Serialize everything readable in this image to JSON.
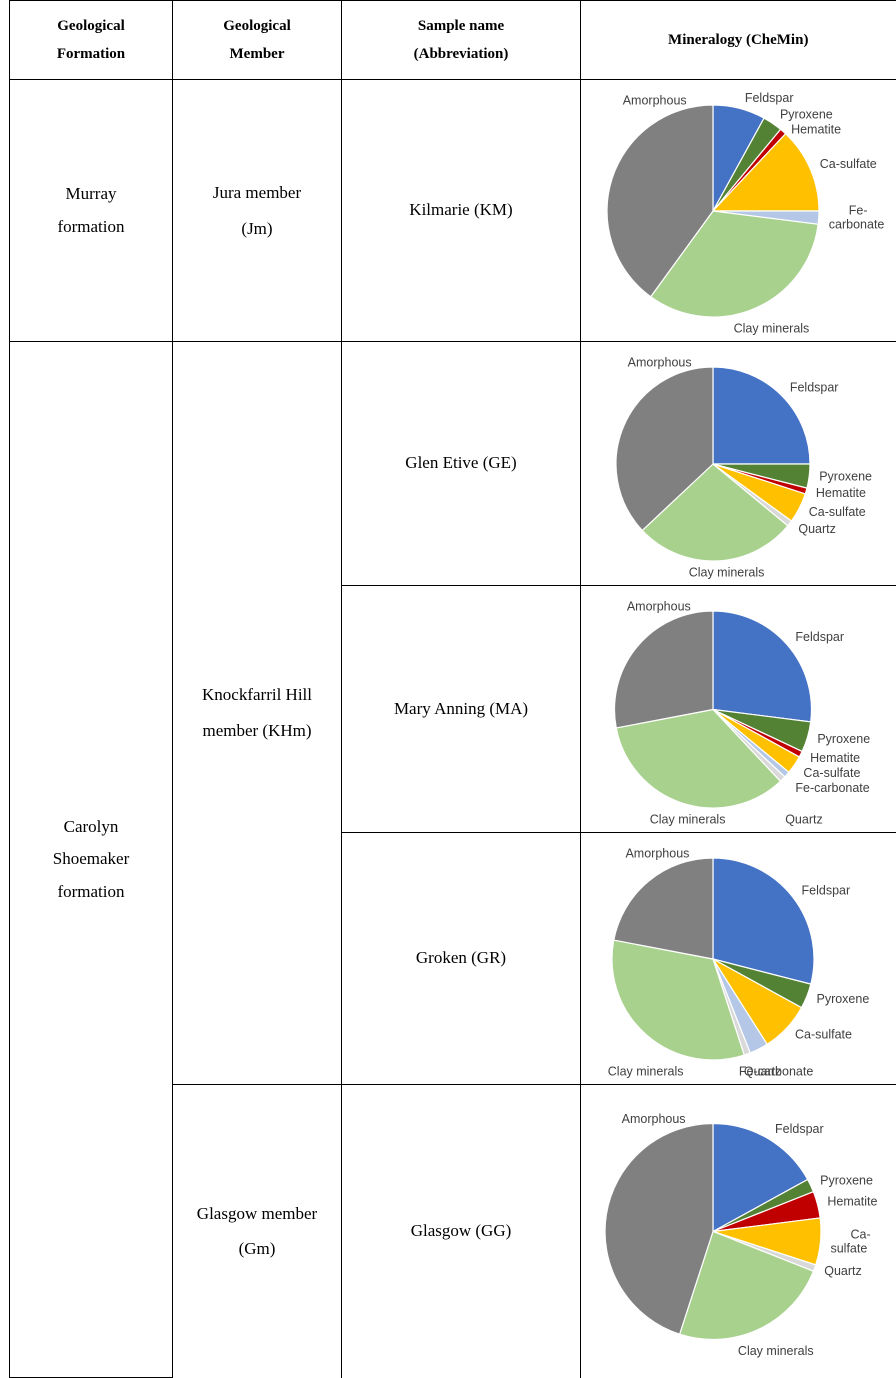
{
  "headers": [
    "Geological Formation",
    "Geological Member",
    "Sample name (Abbreviation)",
    "Mineralogy (CheMin)"
  ],
  "mineral_colors": {
    "Feldspar": "#4472c4",
    "Pyroxene": "#548235",
    "Hematite": "#c00000",
    "Ca-sulfate": "#ffc000",
    "Fe-carbonate": "#b4c7e7",
    "Quartz": "#d9d9d9",
    "Clay minerals": "#a9d18e",
    "Amorphous": "#808080"
  },
  "formations": [
    {
      "name": "Murray formation",
      "members": [
        {
          "name": "Jura member (Jm)",
          "samples": [
            {
              "name": "Kilmarie (KM)",
              "mineralogy": [
                {
                  "label": "Feldspar",
                  "value": 8
                },
                {
                  "label": "Pyroxene",
                  "value": 3
                },
                {
                  "label": "Hematite",
                  "value": 1
                },
                {
                  "label": "Ca-sulfate",
                  "value": 13
                },
                {
                  "label": "Fe-carbonate",
                  "value": 2
                },
                {
                  "label": "Clay minerals",
                  "value": 33
                },
                {
                  "label": "Amorphous",
                  "value": 40
                }
              ]
            }
          ]
        }
      ]
    },
    {
      "name": "Carolyn Shoemaker formation",
      "members": [
        {
          "name": "Knockfarril Hill member (KHm)",
          "samples": [
            {
              "name": "Glen Etive (GE)",
              "mineralogy": [
                {
                  "label": "Feldspar",
                  "value": 25
                },
                {
                  "label": "Pyroxene",
                  "value": 4
                },
                {
                  "label": "Hematite",
                  "value": 1
                },
                {
                  "label": "Ca-sulfate",
                  "value": 5
                },
                {
                  "label": "Quartz",
                  "value": 1
                },
                {
                  "label": "Clay minerals",
                  "value": 27
                },
                {
                  "label": "Amorphous",
                  "value": 37
                }
              ]
            },
            {
              "name": "Mary Anning (MA)",
              "mineralogy": [
                {
                  "label": "Feldspar",
                  "value": 27
                },
                {
                  "label": "Pyroxene",
                  "value": 5
                },
                {
                  "label": "Hematite",
                  "value": 1
                },
                {
                  "label": "Ca-sulfate",
                  "value": 3
                },
                {
                  "label": "Fe-carbonate",
                  "value": 1
                },
                {
                  "label": "Quartz",
                  "value": 1
                },
                {
                  "label": "Clay minerals",
                  "value": 34
                },
                {
                  "label": "Amorphous",
                  "value": 28
                }
              ]
            },
            {
              "name": "Groken (GR)",
              "mineralogy": [
                {
                  "label": "Feldspar",
                  "value": 29
                },
                {
                  "label": "Pyroxene",
                  "value": 4
                },
                {
                  "label": "Ca-sulfate",
                  "value": 8
                },
                {
                  "label": "Fe-carbonate",
                  "value": 3
                },
                {
                  "label": "Quartz",
                  "value": 1
                },
                {
                  "label": "Clay minerals",
                  "value": 33
                },
                {
                  "label": "Amorphous",
                  "value": 22
                }
              ]
            }
          ]
        },
        {
          "name": "Glasgow member (Gm)",
          "samples": [
            {
              "name": "Glasgow (GG)",
              "mineralogy": [
                {
                  "label": "Feldspar",
                  "value": 17
                },
                {
                  "label": "Pyroxene",
                  "value": 2
                },
                {
                  "label": "Hematite",
                  "value": 4
                },
                {
                  "label": "Ca-sulfate",
                  "value": 7
                },
                {
                  "label": "Quartz",
                  "value": 1
                },
                {
                  "label": "Clay minerals",
                  "value": 24
                },
                {
                  "label": "Amorphous",
                  "value": 45
                }
              ]
            }
          ]
        }
      ]
    }
  ]
}
